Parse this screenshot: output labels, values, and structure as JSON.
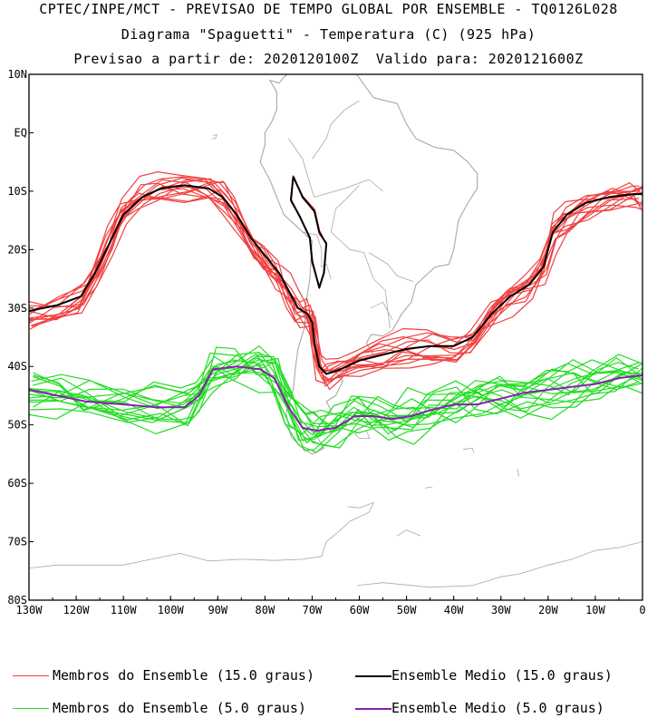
{
  "header": {
    "line1": "CPTEC/INPE/MCT - PREVISAO DE TEMPO GLOBAL POR ENSEMBLE - TQ0126L028",
    "line2": "Diagrama \"Spaguetti\" - Temperatura (C) (925 hPa)",
    "line3": "Previsao a partir de: 2020120100Z  Valido para: 2020121600Z"
  },
  "chart_data": {
    "type": "line",
    "subtype": "spaghetti map",
    "xlim": [
      -130,
      0
    ],
    "ylim": [
      -80,
      10
    ],
    "x_ticks": [
      {
        "value": -130,
        "label": "130W"
      },
      {
        "value": -120,
        "label": "120W"
      },
      {
        "value": -110,
        "label": "110W"
      },
      {
        "value": -100,
        "label": "100W"
      },
      {
        "value": -90,
        "label": "90W"
      },
      {
        "value": -80,
        "label": "80W"
      },
      {
        "value": -70,
        "label": "70W"
      },
      {
        "value": -60,
        "label": "60W"
      },
      {
        "value": -50,
        "label": "50W"
      },
      {
        "value": -40,
        "label": "40W"
      },
      {
        "value": -30,
        "label": "30W"
      },
      {
        "value": -20,
        "label": "20W"
      },
      {
        "value": -10,
        "label": "10W"
      },
      {
        "value": 0,
        "label": "0"
      }
    ],
    "y_ticks": [
      {
        "value": 10,
        "label": "10N"
      },
      {
        "value": 0,
        "label": "EQ"
      },
      {
        "value": -10,
        "label": "10S"
      },
      {
        "value": -20,
        "label": "20S"
      },
      {
        "value": -30,
        "label": "30S"
      },
      {
        "value": -40,
        "label": "40S"
      },
      {
        "value": -50,
        "label": "50S"
      },
      {
        "value": -60,
        "label": "60S"
      },
      {
        "value": -70,
        "label": "70S"
      },
      {
        "value": -80,
        "label": "80S"
      }
    ],
    "colors": {
      "members_15": "#f04040",
      "mean_15": "#000000",
      "members_5": "#22dd22",
      "mean_5": "#8a1fb0",
      "coast": "#a8a8a8"
    },
    "series": [
      {
        "name": "Ensemble Medio (15.0 graus)",
        "color_key": "mean_15",
        "points": [
          [
            -130,
            -30.5
          ],
          [
            -124,
            -29.5
          ],
          [
            -119,
            -28
          ],
          [
            -116,
            -24
          ],
          [
            -113,
            -19
          ],
          [
            -110,
            -14
          ],
          [
            -106,
            -11
          ],
          [
            -102,
            -9.5
          ],
          [
            -97,
            -9
          ],
          [
            -92,
            -9.5
          ],
          [
            -89,
            -11
          ],
          [
            -86,
            -14
          ],
          [
            -83,
            -18
          ],
          [
            -80,
            -21
          ],
          [
            -77,
            -24
          ],
          [
            -75,
            -27
          ],
          [
            -73,
            -30
          ],
          [
            -71,
            -31
          ],
          [
            -70,
            -32.5
          ],
          [
            -69.5,
            -36
          ],
          [
            -68.5,
            -40
          ],
          [
            -67,
            -41.3
          ],
          [
            -64,
            -40.5
          ],
          [
            -60,
            -39
          ],
          [
            -55,
            -38
          ],
          [
            -50,
            -37
          ],
          [
            -45,
            -36.5
          ],
          [
            -40,
            -36.5
          ],
          [
            -36,
            -35
          ],
          [
            -32,
            -31
          ],
          [
            -28,
            -28
          ],
          [
            -24,
            -26
          ],
          [
            -21,
            -23
          ],
          [
            -19,
            -17
          ],
          [
            -16,
            -14
          ],
          [
            -12,
            -12
          ],
          [
            -7,
            -11
          ],
          [
            -2,
            -10.5
          ],
          [
            0,
            -10.5
          ]
        ]
      },
      {
        "name": "Ensemble Medio (15.0 graus)",
        "color_key": "mean_15",
        "points": [
          [
            -74,
            -7.5
          ],
          [
            -72,
            -11
          ],
          [
            -69.5,
            -13.5
          ],
          [
            -68.5,
            -17
          ],
          [
            -67,
            -19
          ],
          [
            -67.5,
            -24
          ],
          [
            -68.5,
            -26.5
          ],
          [
            -70,
            -22
          ],
          [
            -70.5,
            -18
          ],
          [
            -72.5,
            -14.5
          ],
          [
            -74.5,
            -11.5
          ],
          [
            -74,
            -7.5
          ]
        ]
      },
      {
        "name": "Ensemble Medio (5.0 graus)",
        "color_key": "mean_5",
        "points": [
          [
            -130,
            -44
          ],
          [
            -124,
            -45
          ],
          [
            -118,
            -46
          ],
          [
            -110,
            -46.5
          ],
          [
            -103,
            -47
          ],
          [
            -97,
            -47
          ],
          [
            -94,
            -45
          ],
          [
            -91,
            -40.5
          ],
          [
            -86,
            -40
          ],
          [
            -81,
            -40.5
          ],
          [
            -78,
            -42
          ],
          [
            -75,
            -47
          ],
          [
            -72,
            -50.5
          ],
          [
            -69,
            -51
          ],
          [
            -65,
            -50.5
          ],
          [
            -61,
            -48.5
          ],
          [
            -57,
            -48.5
          ],
          [
            -53,
            -49
          ],
          [
            -49,
            -48.5
          ],
          [
            -45,
            -47.5
          ],
          [
            -40,
            -46.5
          ],
          [
            -35,
            -46.5
          ],
          [
            -30,
            -45.5
          ],
          [
            -25,
            -44.5
          ],
          [
            -20,
            -44
          ],
          [
            -15,
            -43.5
          ],
          [
            -10,
            -43
          ],
          [
            -5,
            -42
          ],
          [
            0,
            -41.5
          ]
        ]
      }
    ]
  },
  "legend": {
    "members_15": "Membros do Ensemble (15.0 graus)",
    "mean_15": "Ensemble Medio (15.0 graus)",
    "members_5": "Membros do Ensemble (5.0 graus)",
    "mean_5": "Ensemble Medio (5.0 graus)"
  }
}
